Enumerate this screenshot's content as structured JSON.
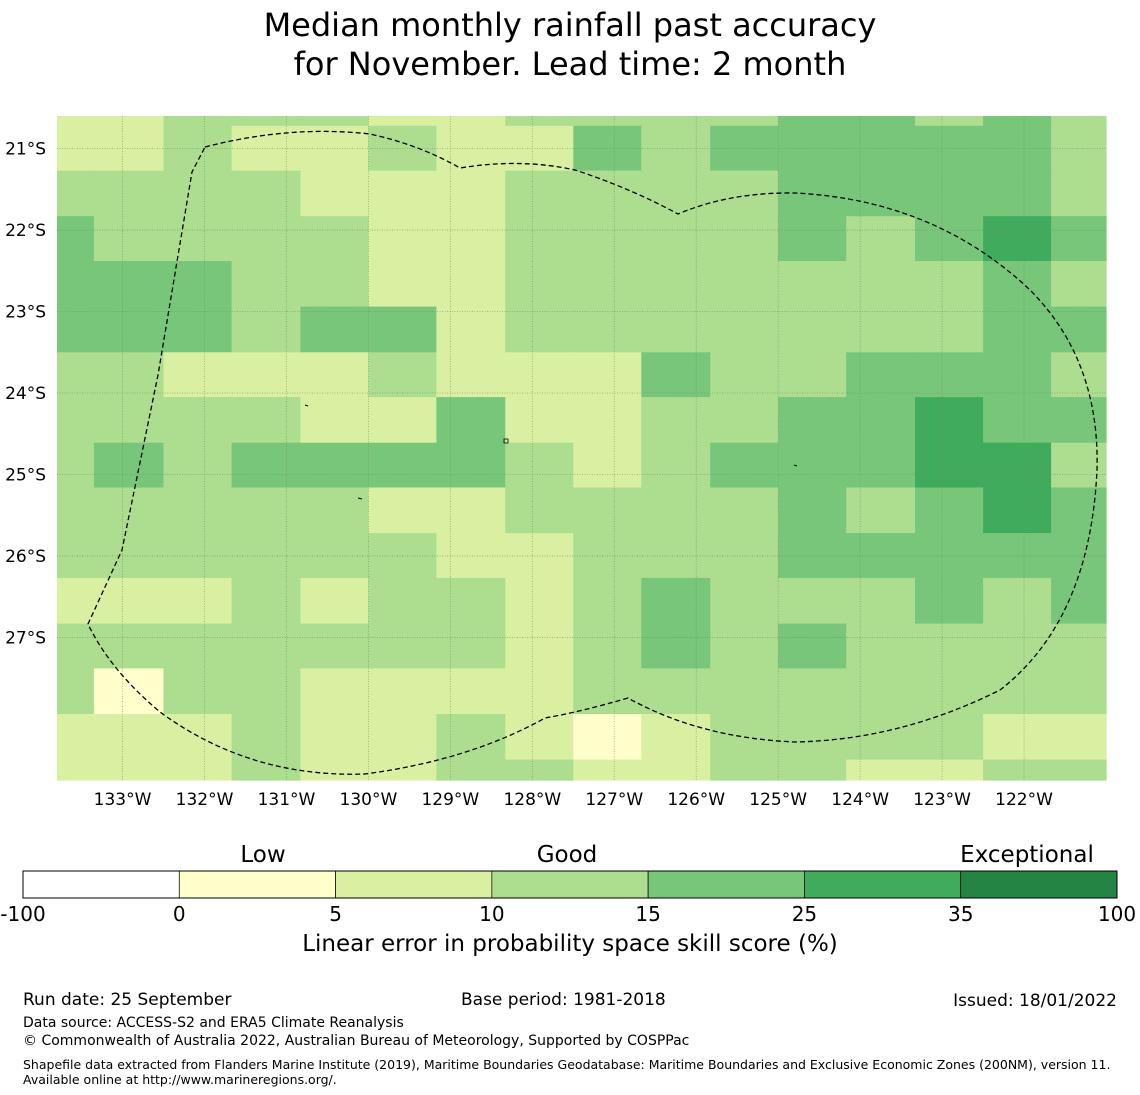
{
  "title": {
    "line1": "Median monthly rainfall past accuracy",
    "line2": "for November. Lead time: 2 month"
  },
  "map": {
    "longitude_labels": [
      "133°W",
      "132°W",
      "131°W",
      "130°W",
      "129°W",
      "128°W",
      "127°W",
      "126°W",
      "125°W",
      "124°W",
      "123°W",
      "122°W"
    ],
    "longitude_values": [
      -133,
      -132,
      -131,
      -130,
      -129,
      -128,
      -127,
      -126,
      -125,
      -124,
      -123,
      -122
    ],
    "latitude_labels": [
      "21°S",
      "22°S",
      "23°S",
      "24°S",
      "25°S",
      "26°S",
      "27°S"
    ],
    "latitude_values": [
      -21,
      -22,
      -23,
      -24,
      -25,
      -26,
      -27
    ],
    "extent": {
      "lon_min": -133.8,
      "lon_max": -121.0,
      "lat_max": -20.6,
      "lat_min": -28.75
    },
    "grid": {
      "lon_edges": [
        -133.8,
        -133.35,
        -132.5,
        -131.67,
        -130.83,
        -130.0,
        -129.17,
        -128.33,
        -127.5,
        -126.67,
        -125.83,
        -125.0,
        -124.17,
        -123.33,
        -122.5,
        -121.67,
        -121.0
      ],
      "lat_edges": [
        -20.6,
        -20.72,
        -21.27,
        -21.83,
        -22.38,
        -22.94,
        -23.5,
        -24.05,
        -24.61,
        -25.16,
        -25.72,
        -26.27,
        -26.83,
        -27.38,
        -27.94,
        -28.5,
        -28.75
      ],
      "class_values": [
        [
          5,
          5,
          10,
          10,
          10,
          5,
          5,
          10,
          10,
          10,
          10,
          15,
          15,
          10,
          15,
          10
        ],
        [
          5,
          5,
          10,
          5,
          5,
          10,
          5,
          5,
          15,
          10,
          15,
          15,
          15,
          15,
          15,
          10
        ],
        [
          10,
          10,
          10,
          10,
          5,
          5,
          5,
          10,
          10,
          10,
          10,
          15,
          15,
          15,
          15,
          10
        ],
        [
          15,
          10,
          10,
          10,
          10,
          5,
          5,
          10,
          10,
          10,
          10,
          15,
          10,
          15,
          25,
          15
        ],
        [
          15,
          15,
          15,
          10,
          10,
          5,
          5,
          10,
          10,
          10,
          10,
          10,
          10,
          10,
          15,
          10
        ],
        [
          15,
          15,
          15,
          10,
          15,
          15,
          5,
          10,
          10,
          10,
          10,
          10,
          10,
          10,
          15,
          15
        ],
        [
          10,
          10,
          5,
          5,
          5,
          10,
          5,
          5,
          5,
          15,
          10,
          10,
          15,
          15,
          15,
          10
        ],
        [
          10,
          10,
          10,
          10,
          5,
          5,
          15,
          5,
          5,
          10,
          10,
          15,
          15,
          25,
          15,
          15
        ],
        [
          10,
          15,
          10,
          15,
          15,
          15,
          15,
          10,
          5,
          10,
          15,
          15,
          15,
          25,
          25,
          10
        ],
        [
          10,
          10,
          10,
          10,
          10,
          5,
          5,
          10,
          10,
          10,
          10,
          15,
          10,
          15,
          25,
          15
        ],
        [
          10,
          10,
          10,
          10,
          10,
          10,
          5,
          5,
          10,
          10,
          10,
          15,
          15,
          15,
          15,
          15
        ],
        [
          5,
          5,
          5,
          10,
          5,
          10,
          10,
          5,
          10,
          15,
          10,
          10,
          10,
          15,
          10,
          15
        ],
        [
          10,
          10,
          10,
          10,
          10,
          10,
          10,
          5,
          10,
          15,
          10,
          15,
          10,
          10,
          10,
          10
        ],
        [
          10,
          0,
          10,
          10,
          5,
          5,
          5,
          5,
          10,
          10,
          10,
          10,
          10,
          10,
          10,
          10
        ],
        [
          5,
          5,
          5,
          10,
          5,
          5,
          10,
          5,
          0,
          5,
          10,
          10,
          10,
          10,
          5,
          5
        ],
        [
          5,
          5,
          5,
          10,
          5,
          5,
          10,
          10,
          5,
          5,
          10,
          10,
          5,
          5,
          10,
          10
        ]
      ]
    }
  },
  "colorbar": {
    "category_labels": [
      "Low",
      "Good",
      "Exceptional"
    ],
    "tick_labels": [
      "-100",
      "0",
      "5",
      "10",
      "15",
      "25",
      "35",
      "100"
    ],
    "class_lower_bounds": [
      -100,
      0,
      5,
      10,
      15,
      25,
      35
    ],
    "colors": [
      "#ffffff",
      "#ffffcc",
      "#d9f0a3",
      "#addd8e",
      "#78c679",
      "#41ab5d",
      "#238443"
    ],
    "axis_label": "Linear error in probability space skill score (%)"
  },
  "footer": {
    "run_date": "Run date: 25 September",
    "base_period": "Base period: 1981-2018",
    "issued": "Issued: 18/01/2022",
    "data_source": "Data source: ACCESS-S2 and ERA5 Climate Reanalysis",
    "copyright": "© Commonwealth of Australia 2022, Australian Bureau of Meteorology, Supported by COSPPac",
    "shapefile_note": "Shapefile data extracted from Flanders Marine Institute (2019), Maritime Boundaries Geodatabase: Maritime Boundaries and Exclusive Economic Zones (200NM), version 11. Available online at http://www.marineregions.org/."
  }
}
